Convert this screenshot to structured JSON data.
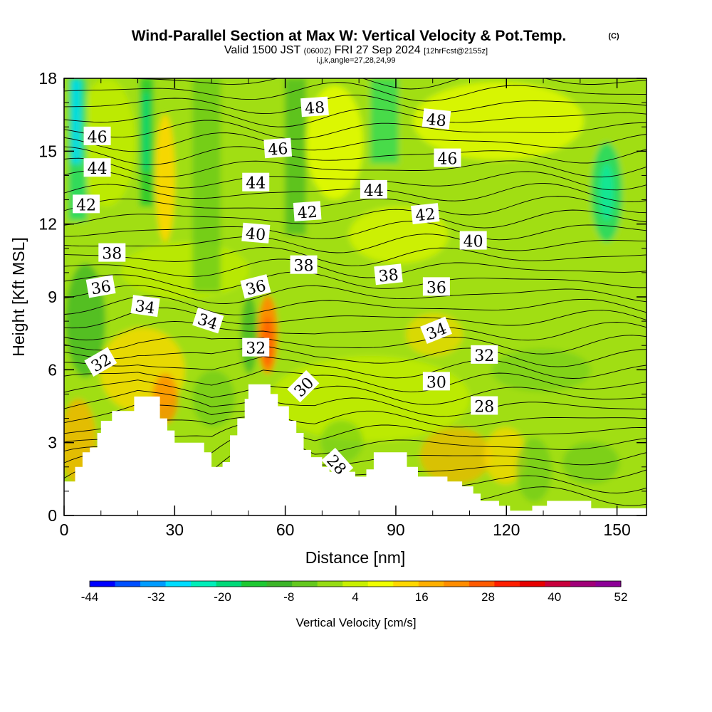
{
  "title": "Wind-Parallel Section at Max W: Vertical Velocity & Pot.Temp.",
  "title_mark": "(C)",
  "subtitle_a": "Valid 1500 JST",
  "subtitle_b": "(0600Z)",
  "subtitle_c": "FRI 27 Sep 2024",
  "subtitle_d": "[12hrFcst@2155z]",
  "subtitle_line3": "i,j,k,angle=27,28,24,99",
  "chart_data": {
    "type": "heatmap",
    "xlabel": "Distance [nm]",
    "ylabel": "Height [Kft MSL]",
    "xlim": [
      0,
      158
    ],
    "ylim": [
      0,
      18
    ],
    "xticks": [
      0,
      30,
      60,
      90,
      120,
      150
    ],
    "yticks": [
      0,
      3,
      6,
      9,
      12,
      15,
      18
    ],
    "colorbar": {
      "label": "Vertical Velocity [cm/s]",
      "tick_labels": [
        "-44",
        "-32",
        "-20",
        "-8",
        "4",
        "16",
        "28",
        "40",
        "52"
      ],
      "colors": [
        "#0000ff",
        "#0050ff",
        "#009bff",
        "#00dcff",
        "#00eeb9",
        "#00d978",
        "#1ec832",
        "#3cb428",
        "#64c81e",
        "#96dc14",
        "#c8f000",
        "#f0ff00",
        "#ffd700",
        "#ffaf00",
        "#ff8c00",
        "#ff5a00",
        "#ff1e00",
        "#e60000",
        "#c8003c",
        "#a00078",
        "#8c0096"
      ]
    },
    "terrain": [
      [
        0,
        1.4
      ],
      [
        3,
        1.4
      ],
      [
        3,
        2.0
      ],
      [
        5,
        2.0
      ],
      [
        5,
        2.6
      ],
      [
        7,
        2.6
      ],
      [
        7,
        2.8
      ],
      [
        9,
        2.8
      ],
      [
        9,
        3.4
      ],
      [
        10,
        3.4
      ],
      [
        10,
        3.9
      ],
      [
        13,
        3.9
      ],
      [
        13,
        4.3
      ],
      [
        19,
        4.3
      ],
      [
        19,
        4.9
      ],
      [
        26,
        4.9
      ],
      [
        26,
        4.0
      ],
      [
        28,
        4.0
      ],
      [
        28,
        3.5
      ],
      [
        30,
        3.5
      ],
      [
        30,
        3.0
      ],
      [
        38,
        3.0
      ],
      [
        38,
        2.6
      ],
      [
        40,
        2.6
      ],
      [
        40,
        2.0
      ],
      [
        43,
        2.0
      ],
      [
        43,
        2.2
      ],
      [
        45,
        2.2
      ],
      [
        45,
        3.3
      ],
      [
        47,
        3.3
      ],
      [
        47,
        4.0
      ],
      [
        49,
        4.0
      ],
      [
        49,
        4.8
      ],
      [
        50,
        4.8
      ],
      [
        50,
        5.4
      ],
      [
        56,
        5.4
      ],
      [
        56,
        5.0
      ],
      [
        58,
        5.0
      ],
      [
        58,
        4.5
      ],
      [
        61,
        4.5
      ],
      [
        61,
        3.9
      ],
      [
        63,
        3.9
      ],
      [
        63,
        3.4
      ],
      [
        65,
        3.4
      ],
      [
        65,
        2.7
      ],
      [
        67,
        2.7
      ],
      [
        67,
        2.4
      ],
      [
        70,
        2.4
      ],
      [
        70,
        2.0
      ],
      [
        72,
        2.0
      ],
      [
        72,
        1.8
      ],
      [
        75,
        1.8
      ],
      [
        75,
        2.0
      ],
      [
        77,
        2.0
      ],
      [
        77,
        1.8
      ],
      [
        79,
        1.8
      ],
      [
        79,
        1.6
      ],
      [
        82,
        1.6
      ],
      [
        82,
        1.9
      ],
      [
        84,
        1.9
      ],
      [
        84,
        2.6
      ],
      [
        93,
        2.6
      ],
      [
        93,
        2.0
      ],
      [
        96,
        2.0
      ],
      [
        96,
        1.6
      ],
      [
        104,
        1.6
      ],
      [
        104,
        1.4
      ],
      [
        108,
        1.4
      ],
      [
        108,
        1.2
      ],
      [
        111,
        1.2
      ],
      [
        111,
        0.9
      ],
      [
        113,
        0.9
      ],
      [
        113,
        0.6
      ],
      [
        118,
        0.6
      ],
      [
        118,
        0.4
      ],
      [
        121,
        0.4
      ],
      [
        121,
        0.2
      ],
      [
        127,
        0.2
      ],
      [
        127,
        0.4
      ],
      [
        131,
        0.4
      ],
      [
        131,
        0.6
      ],
      [
        143,
        0.6
      ],
      [
        143,
        0.3
      ],
      [
        158,
        0.3
      ]
    ],
    "isentrope_labels": [
      {
        "value": "48",
        "x": 68,
        "y": 16.8,
        "angle": -4
      },
      {
        "value": "48",
        "x": 101,
        "y": 16.3,
        "angle": 6
      },
      {
        "value": "46",
        "x": 9,
        "y": 15.6,
        "angle": 0
      },
      {
        "value": "46",
        "x": 58,
        "y": 15.1,
        "angle": -4
      },
      {
        "value": "46",
        "x": 104,
        "y": 14.7,
        "angle": 0
      },
      {
        "value": "44",
        "x": 9,
        "y": 14.3,
        "angle": 0
      },
      {
        "value": "44",
        "x": 52,
        "y": 13.7,
        "angle": 0
      },
      {
        "value": "44",
        "x": 84,
        "y": 13.4,
        "angle": 0
      },
      {
        "value": "42",
        "x": 6,
        "y": 12.8,
        "angle": 0
      },
      {
        "value": "42",
        "x": 66,
        "y": 12.5,
        "angle": -4
      },
      {
        "value": "42",
        "x": 98,
        "y": 12.4,
        "angle": -6
      },
      {
        "value": "40",
        "x": 52,
        "y": 11.6,
        "angle": 5
      },
      {
        "value": "40",
        "x": 111,
        "y": 11.3,
        "angle": 0
      },
      {
        "value": "38",
        "x": 13,
        "y": 10.8,
        "angle": 0
      },
      {
        "value": "38",
        "x": 65,
        "y": 10.3,
        "angle": 0
      },
      {
        "value": "38",
        "x": 88,
        "y": 9.9,
        "angle": -6
      },
      {
        "value": "36",
        "x": 10,
        "y": 9.4,
        "angle": -10
      },
      {
        "value": "36",
        "x": 52,
        "y": 9.4,
        "angle": -14
      },
      {
        "value": "36",
        "x": 101,
        "y": 9.4,
        "angle": 0
      },
      {
        "value": "34",
        "x": 22,
        "y": 8.6,
        "angle": 8
      },
      {
        "value": "34",
        "x": 39,
        "y": 8.0,
        "angle": 18
      },
      {
        "value": "34",
        "x": 101,
        "y": 7.6,
        "angle": -22
      },
      {
        "value": "32",
        "x": 10,
        "y": 6.3,
        "angle": -30
      },
      {
        "value": "32",
        "x": 52,
        "y": 6.9,
        "angle": 0
      },
      {
        "value": "32",
        "x": 114,
        "y": 6.6,
        "angle": 0
      },
      {
        "value": "30",
        "x": 65,
        "y": 5.3,
        "angle": -45
      },
      {
        "value": "30",
        "x": 101,
        "y": 5.5,
        "angle": 0
      },
      {
        "value": "28",
        "x": 114,
        "y": 4.5,
        "angle": 0
      },
      {
        "value": "28",
        "x": 74,
        "y": 2.1,
        "angle": 48
      }
    ]
  }
}
